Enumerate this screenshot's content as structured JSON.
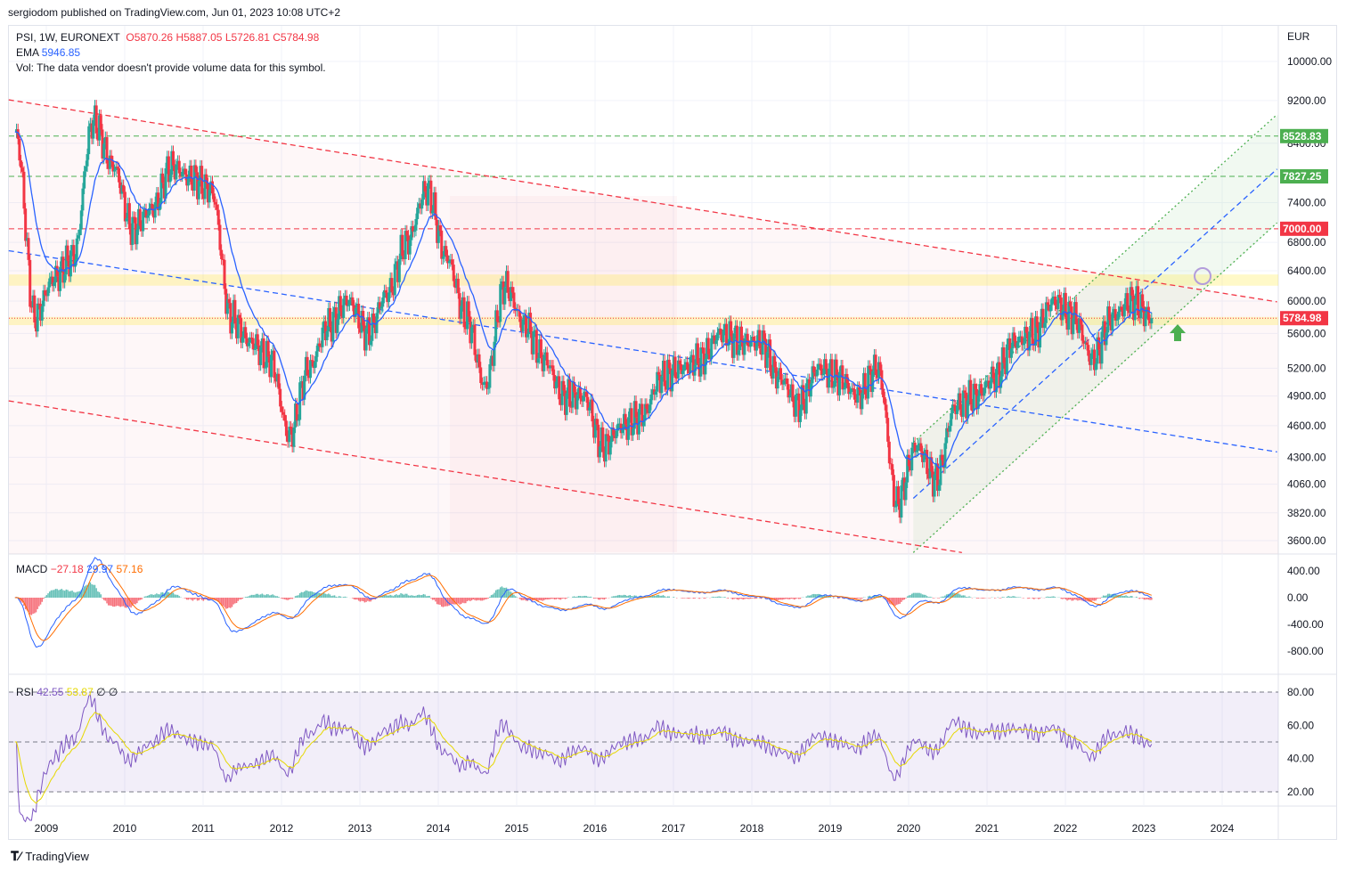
{
  "header": {
    "published": "sergiodom published on TradingView.com, Jun 01, 2023 10:08 UTC+2"
  },
  "legend": {
    "symbol": "PSI, 1W, EURONEXT",
    "o": "O5870.26",
    "h": "H5887.05",
    "l": "L5726.81",
    "c": "C5784.98",
    "ema_label": "EMA",
    "ema_value": "5946.85",
    "vol": "Vol: The data vendor doesn't provide volume data for this symbol.",
    "macd_label": "MACD",
    "macd_hist": "−27.18",
    "macd_line": "29.97",
    "macd_signal": "57.16",
    "rsi_label": "RSI",
    "rsi_value": "42.55",
    "rsi_ma": "53.87",
    "rsi_extra1": "∅",
    "rsi_extra2": "∅"
  },
  "footer": {
    "brand": "TradingView"
  },
  "colors": {
    "up": "#26a69a",
    "down": "#f23645",
    "ema": "#2962ff",
    "macd": "#2962ff",
    "signal": "#ff6d00",
    "rsi": "#7e57c2",
    "rsi_ma": "#e6d800",
    "green_label": "#4caf50"
  },
  "chart_data": {
    "type": "line",
    "title": "PSI, 1W, EURONEXT",
    "currency": "EUR",
    "price_scale": "log",
    "ylim": [
      3500,
      10300
    ],
    "xlim": [
      2008.52,
      2024.7
    ],
    "y_ticks": [
      "10000.00",
      "9200.00",
      "8400.00",
      "7400.00",
      "6800.00",
      "6400.00",
      "6000.00",
      "5600.00",
      "5200.00",
      "4900.00",
      "4600.00",
      "4300.00",
      "4060.00",
      "3820.00",
      "3600.00"
    ],
    "x_ticks": [
      "2009",
      "2010",
      "2011",
      "2012",
      "2013",
      "2014",
      "2015",
      "2016",
      "2017",
      "2018",
      "2019",
      "2020",
      "2021",
      "2022",
      "2023",
      "2024"
    ],
    "close_start": 2008.6,
    "close_step": 0.25,
    "close": [
      8600,
      5800,
      6300,
      6600,
      8800,
      8000,
      7000,
      7300,
      8000,
      7800,
      7600,
      5800,
      5500,
      5300,
      4500,
      5200,
      5700,
      6000,
      5600,
      6100,
      6800,
      7600,
      6600,
      5800,
      5000,
      6200,
      5700,
      5300,
      4900,
      4900,
      4400,
      4600,
      4700,
      5100,
      5200,
      5300,
      5600,
      5500,
      5500,
      5100,
      4800,
      5200,
      5100,
      4900,
      5200,
      3900,
      4400,
      4100,
      4800,
      4900,
      5100,
      5500,
      5600,
      6000,
      5800,
      5300,
      5800,
      6000,
      5785
    ],
    "price_labels": [
      {
        "value": "8528.83",
        "color": "#4caf50"
      },
      {
        "value": "7827.25",
        "color": "#4caf50"
      },
      {
        "value": "7000.00",
        "color": "#f23645"
      },
      {
        "value": "5784.98",
        "color": "#f23645"
      }
    ],
    "zones": [
      {
        "from": 6200,
        "to": 6350
      },
      {
        "from": 5700,
        "to": 5800
      }
    ],
    "trendlines": [
      {
        "name": "main-resistance",
        "from": [
          2008.52,
          9215
        ],
        "to": [
          2024.7,
          5990
        ],
        "color": "#f23645",
        "dash": "6 4"
      },
      {
        "name": "main-support",
        "from": [
          2008.52,
          4850
        ],
        "to": [
          2020.68,
          3510
        ],
        "color": "#f23645",
        "dash": "6 4"
      },
      {
        "name": "mid-line",
        "from": [
          2008.52,
          6680
        ],
        "to": [
          2024.7,
          4350
        ],
        "color": "#2962ff",
        "dash": "6 4"
      },
      {
        "name": "channel-upper",
        "from": [
          2020.06,
          4440
        ],
        "to": [
          2024.7,
          8930
        ],
        "color": "#4caf50",
        "dash": "2 3"
      },
      {
        "name": "channel-mid",
        "from": [
          2020.06,
          3940
        ],
        "to": [
          2024.7,
          7950
        ],
        "color": "#2962ff",
        "dash": "6 4"
      },
      {
        "name": "channel-lower",
        "from": [
          2020.06,
          3510
        ],
        "to": [
          2024.7,
          7090
        ],
        "color": "#4caf50",
        "dash": "2 3"
      }
    ],
    "macd_ticks": [
      "400.00",
      "0.00",
      "-400.00",
      "-800.00"
    ],
    "rsi_ticks": [
      "80.00",
      "60.00",
      "40.00",
      "20.00"
    ]
  }
}
